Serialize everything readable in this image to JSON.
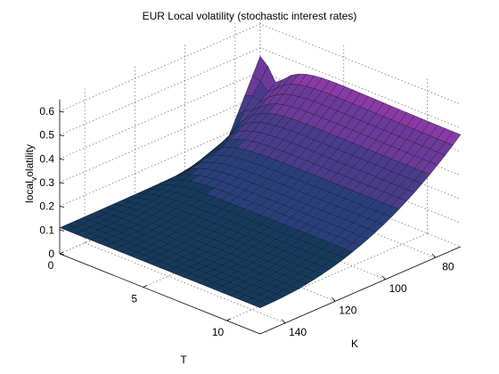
{
  "chart_data": {
    "type": "surface",
    "title": "EUR Local volatility (stochastic interest rates)",
    "xlabel": "T",
    "ylabel": "K",
    "zlabel": "local_volatility",
    "zlabel_main": "local",
    "zlabel_sub": "v",
    "zlabel_rest": "olatility",
    "x_ticks": [
      "0",
      "5",
      "10"
    ],
    "y_ticks": [
      "80",
      "100",
      "120",
      "140"
    ],
    "z_ticks": [
      "0",
      "0.1",
      "0.2",
      "0.3",
      "0.4",
      "0.5",
      "0.6"
    ],
    "xlim": [
      0,
      12
    ],
    "ylim": [
      70,
      150
    ],
    "zlim": [
      0,
      0.65
    ],
    "grid": true,
    "colormap": [
      "#0f2a45",
      "#173a5c",
      "#2a3f7a",
      "#4a3c8a",
      "#6c3a98",
      "#8a3aa6",
      "#a64bbf",
      "#c25ad0"
    ]
  }
}
